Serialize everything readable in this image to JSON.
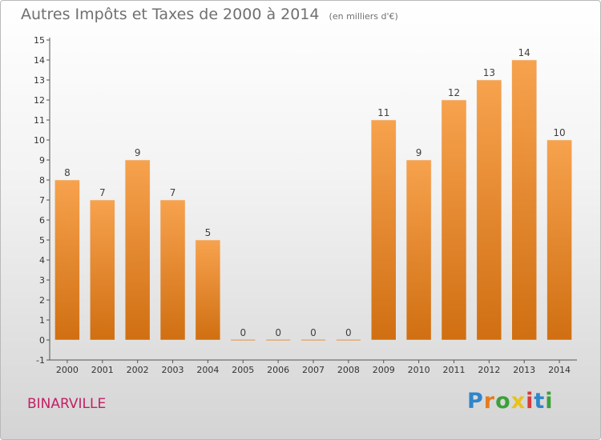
{
  "chart_data": {
    "type": "bar",
    "title": "Autres Impôts et Taxes de 2000 à 2014",
    "subtitle": "(en milliers d'€)",
    "categories": [
      "2000",
      "2001",
      "2002",
      "2003",
      "2004",
      "2005",
      "2006",
      "2007",
      "2008",
      "2009",
      "2010",
      "2011",
      "2012",
      "2013",
      "2014"
    ],
    "values": [
      8,
      7,
      9,
      7,
      5,
      0,
      0,
      0,
      0,
      11,
      9,
      12,
      13,
      14,
      10
    ],
    "ylim": [
      -1,
      15
    ],
    "yticks": [
      -1,
      0,
      1,
      2,
      3,
      4,
      5,
      6,
      7,
      8,
      9,
      10,
      11,
      12,
      13,
      14,
      15
    ],
    "grid": false,
    "bar_color": "#f08c28"
  },
  "place": "BINARVILLE",
  "logo": {
    "text": "Proxiti",
    "colors": [
      "#2f86c9",
      "#e57c1e",
      "#3aa13a",
      "#e8c21a",
      "#d63b3b",
      "#2f86c9",
      "#3aa13a"
    ]
  }
}
